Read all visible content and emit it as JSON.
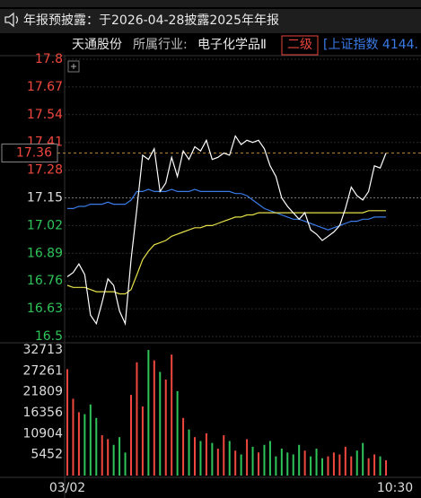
{
  "notice": {
    "text": "年报预披露：于2026-04-28披露2025年年报"
  },
  "header": {
    "stock": "天通股份",
    "industry_label": "所属行业:",
    "industry": "电子化学品Ⅱ",
    "level": "二级",
    "index": "[上证指数 4144."
  },
  "chart_data": [
    {
      "type": "line",
      "categories": [
        "03/02",
        null,
        null,
        null,
        null,
        null,
        null,
        null,
        null,
        null,
        null,
        null,
        null,
        null,
        null,
        null,
        null,
        null,
        null,
        null,
        null,
        null,
        null,
        null,
        null,
        null,
        null,
        null,
        null,
        null,
        null,
        null,
        null,
        null,
        null,
        null,
        null,
        null,
        null,
        null,
        null,
        null,
        null,
        null,
        null,
        null,
        null,
        null,
        null,
        null,
        null,
        null,
        null,
        null,
        null,
        "10:30"
      ],
      "series": [
        {
          "color": "#ffffff",
          "values": [
            16.78,
            16.8,
            16.84,
            16.79,
            16.6,
            16.56,
            16.66,
            16.77,
            16.74,
            16.62,
            16.56,
            16.86,
            17.1,
            17.35,
            17.33,
            17.38,
            17.18,
            17.22,
            17.34,
            17.25,
            17.37,
            17.33,
            17.39,
            17.37,
            17.42,
            17.33,
            17.34,
            17.36,
            17.35,
            17.44,
            17.4,
            17.42,
            17.41,
            17.42,
            17.38,
            17.3,
            17.25,
            17.15,
            17.11,
            17.08,
            17.05,
            17.08,
            17.0,
            16.98,
            16.95,
            16.97,
            16.99,
            17.02,
            17.1,
            17.2,
            17.16,
            17.14,
            17.18,
            17.3,
            17.29,
            17.36
          ]
        },
        {
          "color": "#e6e04a",
          "values": [
            16.74,
            16.73,
            16.73,
            16.73,
            16.72,
            16.71,
            16.71,
            16.71,
            16.71,
            16.7,
            16.7,
            16.72,
            16.79,
            16.86,
            16.9,
            16.93,
            16.94,
            16.95,
            16.97,
            16.98,
            16.99,
            17.0,
            17.01,
            17.01,
            17.02,
            17.02,
            17.03,
            17.04,
            17.05,
            17.06,
            17.06,
            17.07,
            17.07,
            17.08,
            17.08,
            17.08,
            17.08,
            17.08,
            17.08,
            17.08,
            17.08,
            17.08,
            17.08,
            17.08,
            17.08,
            17.08,
            17.08,
            17.08,
            17.08,
            17.08,
            17.08,
            17.08,
            17.09,
            17.09,
            17.09,
            17.09
          ]
        },
        {
          "color": "#3a7be8",
          "values": [
            17.1,
            17.1,
            17.11,
            17.11,
            17.12,
            17.12,
            17.12,
            17.13,
            17.12,
            17.12,
            17.12,
            17.14,
            17.18,
            17.18,
            17.19,
            17.18,
            17.18,
            17.18,
            17.19,
            17.18,
            17.18,
            17.18,
            17.19,
            17.18,
            17.18,
            17.18,
            17.18,
            17.18,
            17.18,
            17.17,
            17.17,
            17.16,
            17.14,
            17.12,
            17.1,
            17.09,
            17.08,
            17.07,
            17.06,
            17.05,
            17.05,
            17.04,
            17.03,
            17.02,
            17.01,
            17.0,
            17.01,
            17.02,
            17.03,
            17.04,
            17.04,
            17.05,
            17.05,
            17.06,
            17.06,
            17.06
          ]
        }
      ],
      "ylim": [
        16.5,
        17.8
      ],
      "yticks": [
        17.8,
        17.67,
        17.54,
        17.41,
        17.28,
        17.15,
        17.02,
        16.89,
        16.76,
        16.63,
        16.5
      ],
      "baseline": 17.15,
      "current_price": 17.36,
      "up_color": "#f0483e",
      "down_color": "#2fc45a",
      "grid": true
    },
    {
      "type": "bar",
      "values": [
        27700,
        20000,
        16500,
        16000,
        18500,
        15000,
        10500,
        9500,
        8000,
        10000,
        6000,
        21000,
        29500,
        18000,
        32700,
        30000,
        27000,
        25000,
        31500,
        22000,
        15000,
        12000,
        10000,
        9000,
        11000,
        8500,
        7000,
        10500,
        9000,
        6500,
        5500,
        9500,
        7500,
        6000,
        8000,
        9000,
        5000,
        7000,
        6000,
        5500,
        8000,
        6500,
        5000,
        7000,
        4500,
        5000,
        6000,
        5500,
        7500,
        5000,
        6500,
        8500,
        4500,
        5500,
        5000,
        4000
      ],
      "ylim": [
        0,
        32713
      ],
      "yticks": [
        5452,
        10904,
        16356,
        21809,
        27261,
        32713
      ],
      "up_color": "#f0483e",
      "down_color": "#2fc45a"
    }
  ]
}
